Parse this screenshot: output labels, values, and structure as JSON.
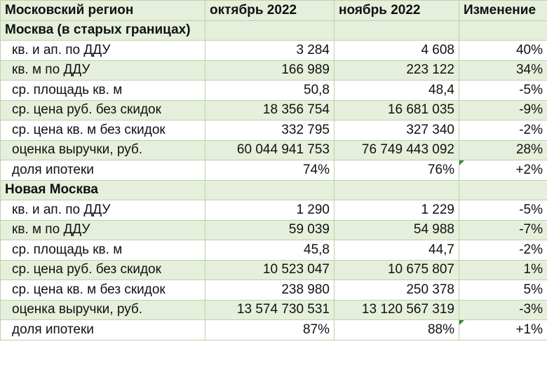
{
  "header": {
    "region": "Московский регион",
    "oct": "октябрь 2022",
    "nov": "ноябрь 2022",
    "change": "Изменение"
  },
  "sections": [
    {
      "title": "Москва (в старых границах)",
      "rows": [
        {
          "label": "кв. и ап. по ДДУ",
          "oct": "3 284",
          "nov": "4 608",
          "change": "40%"
        },
        {
          "label": "кв. м по ДДУ",
          "oct": "166 989",
          "nov": "223 122",
          "change": "34%"
        },
        {
          "label": "ср. площадь кв. м",
          "oct": "50,8",
          "nov": "48,4",
          "change": "-5%"
        },
        {
          "label": "ср. цена руб. без скидок",
          "oct": "18 356 754",
          "nov": "16 681 035",
          "change": "-9%"
        },
        {
          "label": "ср. цена кв. м без скидок",
          "oct": "332 795",
          "nov": "327 340",
          "change": "-2%"
        },
        {
          "label": "оценка выручки, руб.",
          "oct": "60 044 941 753",
          "nov": "76 749 443 092",
          "change": "28%"
        },
        {
          "label": "доля ипотеки",
          "oct": "74%",
          "nov": "76%",
          "change": "+2%"
        }
      ]
    },
    {
      "title": "Новая Москва",
      "rows": [
        {
          "label": "кв. и ап. по ДДУ",
          "oct": "1 290",
          "nov": "1 229",
          "change": "-5%"
        },
        {
          "label": "кв. м по ДДУ",
          "oct": "59 039",
          "nov": "54 988",
          "change": "-7%"
        },
        {
          "label": "ср. площадь кв. м",
          "oct": "45,8",
          "nov": "44,7",
          "change": "-2%"
        },
        {
          "label": "ср. цена руб. без скидок",
          "oct": "10 523 047",
          "nov": "10 675 807",
          "change": "1%"
        },
        {
          "label": "ср. цена кв. м без скидок",
          "oct": "238 980",
          "nov": "250 378",
          "change": "5%"
        },
        {
          "label": "оценка выручки, руб.",
          "oct": "13 574 730 531",
          "nov": "13 120 567 319",
          "change": "-3%"
        },
        {
          "label": "доля ипотеки",
          "oct": "87%",
          "nov": "88%",
          "change": "+1%"
        }
      ]
    }
  ]
}
